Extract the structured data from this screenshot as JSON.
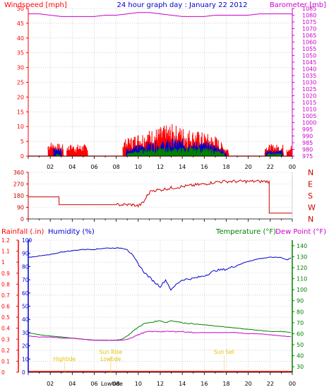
{
  "header": {
    "left_label": "Windspeed [mph]",
    "title": "24 hour graph day : January 22 2012",
    "right_label": "Barometer [mb]"
  },
  "colors": {
    "bg": "#ffffff",
    "grid": "#b4b4b4",
    "red": "#ff0000",
    "darkred": "#cc0000",
    "blue": "#0000cc",
    "green": "#008000",
    "magenta": "#cc00cc",
    "yellow": "#e6c200",
    "black": "#000000"
  },
  "chart_data": [
    {
      "type": "line",
      "name_key": "wind",
      "x_tick_labels": [
        "02",
        "04",
        "06",
        "08",
        "10",
        "12",
        "14",
        "16",
        "18",
        "20",
        "22",
        "00"
      ],
      "left_axis": {
        "label": "Windspeed [mph]",
        "ticks": [
          "0",
          "5",
          "10",
          "15",
          "20",
          "25",
          "30",
          "35",
          "40",
          "45",
          "50"
        ],
        "ylim": [
          0,
          50
        ]
      },
      "right_axis": {
        "label": "Barometer [mb]",
        "ticks": [
          "975",
          "980",
          "985",
          "990",
          "995",
          "1000",
          "1005",
          "1010",
          "1015",
          "1020",
          "1025",
          "1030",
          "1035",
          "1040",
          "1045",
          "1050",
          "1055",
          "1060",
          "1065",
          "1070",
          "1075",
          "1080",
          "1085"
        ],
        "ylim": [
          975,
          1085
        ]
      },
      "series": [
        {
          "name": "Barometer [mb]",
          "color": "#cc00cc",
          "axis": "right",
          "points": [
            [
              0,
              1081
            ],
            [
              1,
              1081
            ],
            [
              2,
              1080
            ],
            [
              3,
              1079
            ],
            [
              4,
              1079
            ],
            [
              5,
              1079
            ],
            [
              6,
              1079
            ],
            [
              7,
              1080
            ],
            [
              8,
              1080
            ],
            [
              9,
              1081
            ],
            [
              10,
              1082
            ],
            [
              11,
              1082
            ],
            [
              12,
              1081
            ],
            [
              13,
              1080
            ],
            [
              14,
              1079
            ],
            [
              15,
              1079
            ],
            [
              16,
              1079
            ],
            [
              17,
              1080
            ],
            [
              18,
              1080
            ],
            [
              19,
              1080
            ],
            [
              20,
              1080
            ],
            [
              21,
              1081
            ],
            [
              22,
              1081
            ],
            [
              23,
              1081
            ],
            [
              24,
              1081
            ]
          ]
        },
        {
          "name": "gust",
          "color": "#ff0000",
          "axis": "left",
          "segments": [
            [
              1.8,
              3.2
            ],
            [
              3.5,
              5.4
            ],
            [
              8.6,
              18.2
            ],
            [
              21.5,
              23.2
            ],
            [
              23.5,
              24
            ]
          ],
          "envelope": [
            [
              2,
              5
            ],
            [
              3,
              4
            ],
            [
              4,
              4
            ],
            [
              5,
              4
            ],
            [
              9,
              6
            ],
            [
              10,
              8
            ],
            [
              11,
              9
            ],
            [
              12,
              10
            ],
            [
              13,
              11
            ],
            [
              14,
              10
            ],
            [
              15,
              9
            ],
            [
              16,
              8
            ],
            [
              17,
              7
            ],
            [
              18,
              3
            ],
            [
              22,
              4
            ],
            [
              23,
              4
            ]
          ]
        },
        {
          "name": "average",
          "color": "#0000cc",
          "axis": "left",
          "segments": [
            [
              2.3,
              3.0
            ],
            [
              8.9,
              18.0
            ],
            [
              21.6,
              23.1
            ]
          ],
          "envelope": [
            [
              9,
              3
            ],
            [
              10,
              4
            ],
            [
              11,
              5
            ],
            [
              12,
              5
            ],
            [
              13,
              6
            ],
            [
              14,
              6
            ],
            [
              15,
              5
            ],
            [
              16,
              5
            ],
            [
              17,
              4
            ],
            [
              18,
              2
            ]
          ]
        },
        {
          "name": "wind",
          "color": "#008000",
          "axis": "left",
          "segments": [
            [
              2.5,
              2.9
            ],
            [
              9.0,
              17.8
            ],
            [
              21.7,
              23.0
            ]
          ],
          "envelope": [
            [
              9,
              1
            ],
            [
              10,
              2
            ],
            [
              11,
              3
            ],
            [
              12,
              3
            ],
            [
              13,
              3
            ],
            [
              14,
              3
            ],
            [
              15,
              3
            ],
            [
              16,
              3
            ],
            [
              17,
              2
            ],
            [
              18,
              1
            ]
          ]
        }
      ]
    },
    {
      "type": "line",
      "name_key": "direction",
      "left_axis": {
        "ticks": [
          "0",
          "90",
          "180",
          "270",
          "360"
        ],
        "ylim": [
          0,
          360
        ]
      },
      "right_axis": {
        "ticks": [
          "N",
          "W",
          "S",
          "E",
          "N"
        ]
      },
      "series": [
        {
          "name": "Wind direction",
          "color": "#cc0000",
          "points": [
            [
              0,
              170
            ],
            [
              2.8,
              170
            ],
            [
              2.8,
              110
            ],
            [
              8,
              110
            ],
            [
              9.5,
              110
            ],
            [
              10,
              100
            ],
            [
              10.5,
              130
            ],
            [
              10.8,
              180
            ],
            [
              11.2,
              220
            ],
            [
              12,
              225
            ],
            [
              13,
              240
            ],
            [
              14,
              250
            ],
            [
              15,
              260
            ],
            [
              16,
              270
            ],
            [
              17,
              285
            ],
            [
              18,
              290
            ],
            [
              19,
              290
            ],
            [
              20,
              290
            ],
            [
              21,
              290
            ],
            [
              21.9,
              290
            ],
            [
              21.9,
              45
            ],
            [
              24,
              45
            ]
          ]
        }
      ]
    },
    {
      "type": "line",
      "name_key": "weather",
      "x_tick_labels": [
        "02",
        "04",
        "06",
        "08",
        "10",
        "12",
        "14",
        "16",
        "18",
        "20",
        "22",
        "00"
      ],
      "axis_labels": {
        "rainfall": "Rainfall (.in)",
        "humidity": "Humidity (%)",
        "temperature": "Temperature (°F)",
        "dewpoint": "Dew Point (°F)"
      },
      "rain_axis": {
        "ticks": [
          "0",
          "0.1",
          "0.2",
          "0.3",
          "0.4",
          "0.5",
          "0.6",
          "0.7",
          "0.8",
          "0.9",
          "1",
          "1.1",
          "1.2"
        ],
        "ylim": [
          0,
          1.2
        ]
      },
      "humidity_axis": {
        "ticks": [
          "0",
          "10",
          "20",
          "30",
          "40",
          "50",
          "60",
          "70",
          "80",
          "90",
          "100"
        ],
        "ylim": [
          0,
          100
        ]
      },
      "temp_axis": {
        "ticks": [
          "30",
          "40",
          "50",
          "60",
          "70",
          "80",
          "90",
          "100",
          "110",
          "120",
          "130",
          "140"
        ],
        "ylim": [
          25,
          145
        ]
      },
      "series": [
        {
          "name": "Humidity (%)",
          "color": "#0000cc",
          "axis": "humidity",
          "points": [
            [
              0,
              87
            ],
            [
              1,
              88
            ],
            [
              2,
              89
            ],
            [
              3,
              91
            ],
            [
              4,
              92
            ],
            [
              5,
              93
            ],
            [
              6,
              93
            ],
            [
              7,
              94
            ],
            [
              8,
              94
            ],
            [
              8.5,
              94
            ],
            [
              9,
              93
            ],
            [
              9.5,
              88
            ],
            [
              10,
              82
            ],
            [
              10.5,
              76
            ],
            [
              11,
              72
            ],
            [
              11.5,
              68
            ],
            [
              12,
              65
            ],
            [
              12.5,
              70
            ],
            [
              13,
              62
            ],
            [
              13.5,
              67
            ],
            [
              14,
              70
            ],
            [
              15,
              71
            ],
            [
              16,
              73
            ],
            [
              17,
              77
            ],
            [
              18,
              78
            ],
            [
              19,
              81
            ],
            [
              20,
              84
            ],
            [
              21,
              86
            ],
            [
              22,
              87
            ],
            [
              23,
              87
            ],
            [
              23.5,
              85
            ],
            [
              24,
              87
            ]
          ]
        },
        {
          "name": "Temperature (°F)",
          "color": "#008000",
          "axis": "temp",
          "points": [
            [
              0,
              61
            ],
            [
              1,
              59
            ],
            [
              2,
              58
            ],
            [
              3,
              57
            ],
            [
              4,
              56
            ],
            [
              5,
              55
            ],
            [
              6,
              54
            ],
            [
              7,
              54
            ],
            [
              8,
              54
            ],
            [
              8.5,
              55
            ],
            [
              9,
              58
            ],
            [
              9.5,
              62
            ],
            [
              10,
              66
            ],
            [
              10.5,
              69
            ],
            [
              11,
              70
            ],
            [
              11.5,
              71
            ],
            [
              12,
              72
            ],
            [
              12.5,
              70
            ],
            [
              13,
              72
            ],
            [
              14,
              70
            ],
            [
              15,
              69
            ],
            [
              16,
              68
            ],
            [
              17,
              67
            ],
            [
              18,
              66
            ],
            [
              19,
              65
            ],
            [
              20,
              64
            ],
            [
              21,
              63
            ],
            [
              22,
              62
            ],
            [
              23,
              62
            ],
            [
              24,
              61
            ]
          ]
        },
        {
          "name": "Dew Point (°F)",
          "color": "#cc00cc",
          "axis": "temp",
          "points": [
            [
              0,
              58
            ],
            [
              1,
              57
            ],
            [
              2,
              57
            ],
            [
              3,
              56
            ],
            [
              4,
              56
            ],
            [
              5,
              55
            ],
            [
              6,
              54
            ],
            [
              7,
              54
            ],
            [
              8,
              54
            ],
            [
              8.5,
              54
            ],
            [
              9,
              55
            ],
            [
              9.5,
              57
            ],
            [
              10,
              59
            ],
            [
              10.5,
              61
            ],
            [
              11,
              62
            ],
            [
              12,
              62
            ],
            [
              13,
              62
            ],
            [
              14,
              62
            ],
            [
              15,
              61
            ],
            [
              16,
              61
            ],
            [
              17,
              61
            ],
            [
              18,
              61
            ],
            [
              19,
              61
            ],
            [
              20,
              60
            ],
            [
              21,
              60
            ],
            [
              22,
              59
            ],
            [
              23,
              58
            ],
            [
              24,
              57
            ]
          ]
        },
        {
          "name": "Rainfall (.in)",
          "color": "#ff0000",
          "axis": "rain",
          "points": [
            [
              0,
              0.01
            ],
            [
              24,
              0.01
            ]
          ]
        }
      ],
      "annotations": [
        {
          "text": "Hightide",
          "x": 3.3,
          "level": 1
        },
        {
          "text": "Sun Rise",
          "x": 7.5,
          "level": 2
        },
        {
          "text": "Lowtide",
          "x": 7.5,
          "level": 1
        },
        {
          "text": "Sun Set",
          "x": 17.8,
          "level": 2
        }
      ],
      "bottom_extra_label": "Lowtide"
    }
  ]
}
